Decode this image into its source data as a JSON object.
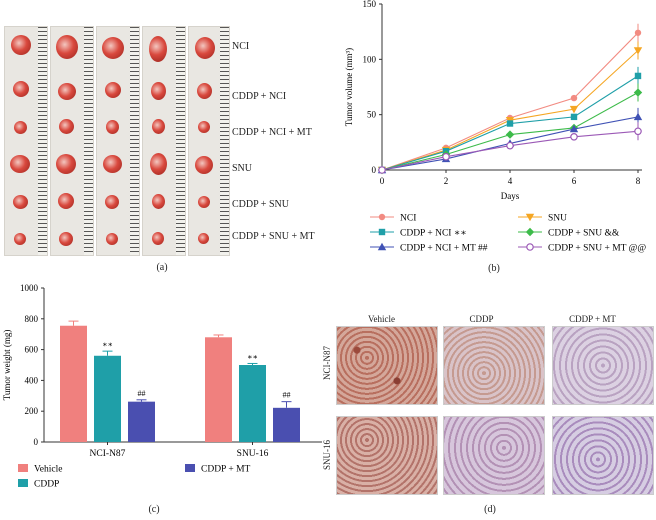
{
  "panel_a": {
    "label": "(a)",
    "groups": [
      "NCI",
      "CDDP + NCI",
      "CDDP + NCI + MT",
      "SNU",
      "CDDP + SNU",
      "CDDP + SNU + MT"
    ]
  },
  "panel_b": {
    "label": "(b)"
  },
  "panel_c": {
    "label": "(c)"
  },
  "panel_d": {
    "label": "(d)",
    "columns": [
      "Vehicle",
      "CDDP",
      "CDDP + MT"
    ],
    "rows": [
      "NCI-N87",
      "SNU-16"
    ]
  },
  "chart_data": [
    {
      "type": "line",
      "ylabel": "Tumor volume (mm³)",
      "xlabel": "Days",
      "x": [
        0,
        2,
        4,
        6,
        8
      ],
      "xticks": [
        "0",
        "2",
        "4",
        "6",
        "8"
      ],
      "ylim": [
        0,
        150
      ],
      "yticks": [
        "0",
        "50",
        "100",
        "150"
      ],
      "series": [
        {
          "name": "NCI",
          "values": [
            0,
            20,
            47,
            65,
            124
          ],
          "color": "#f28b82",
          "marker": "circle"
        },
        {
          "name": "SNU",
          "values": [
            0,
            18,
            45,
            55,
            108
          ],
          "color": "#f5a623",
          "marker": "triangle-down"
        },
        {
          "name": "CDDP + NCI ∗∗",
          "values": [
            0,
            17,
            42,
            48,
            85
          ],
          "color": "#1f9fa8",
          "marker": "square"
        },
        {
          "name": "CDDP + SNU &&",
          "values": [
            0,
            14,
            32,
            38,
            70
          ],
          "color": "#3dbb4a",
          "marker": "diamond"
        },
        {
          "name": "CDDP + NCI + MT ##",
          "values": [
            0,
            10,
            24,
            37,
            48
          ],
          "color": "#4052b5",
          "marker": "triangle-up"
        },
        {
          "name": "CDDP + SNU + MT @@",
          "values": [
            0,
            12,
            22,
            30,
            35
          ],
          "color": "#9b59b6",
          "marker": "open-circle"
        }
      ]
    },
    {
      "type": "bar",
      "ylabel": "Tumor weight (mg)",
      "categories": [
        "NCI-N87",
        "SNU-16"
      ],
      "ylim": [
        0,
        1000
      ],
      "yticks": [
        "0",
        "200",
        "400",
        "600",
        "800",
        "1000"
      ],
      "series": [
        {
          "name": "Vehicle",
          "values": [
            755,
            680
          ],
          "errors": [
            30,
            15
          ],
          "color": "#f0807e",
          "annotations": [
            "",
            ""
          ]
        },
        {
          "name": "CDDP",
          "values": [
            560,
            500
          ],
          "errors": [
            30,
            10
          ],
          "color": "#1f9fa8",
          "annotations": [
            "∗∗",
            "∗∗"
          ]
        },
        {
          "name": "CDDP + MT",
          "values": [
            262,
            222
          ],
          "errors": [
            12,
            40
          ],
          "color": "#4a4fb0",
          "annotations": [
            "##",
            "##"
          ]
        }
      ]
    }
  ]
}
